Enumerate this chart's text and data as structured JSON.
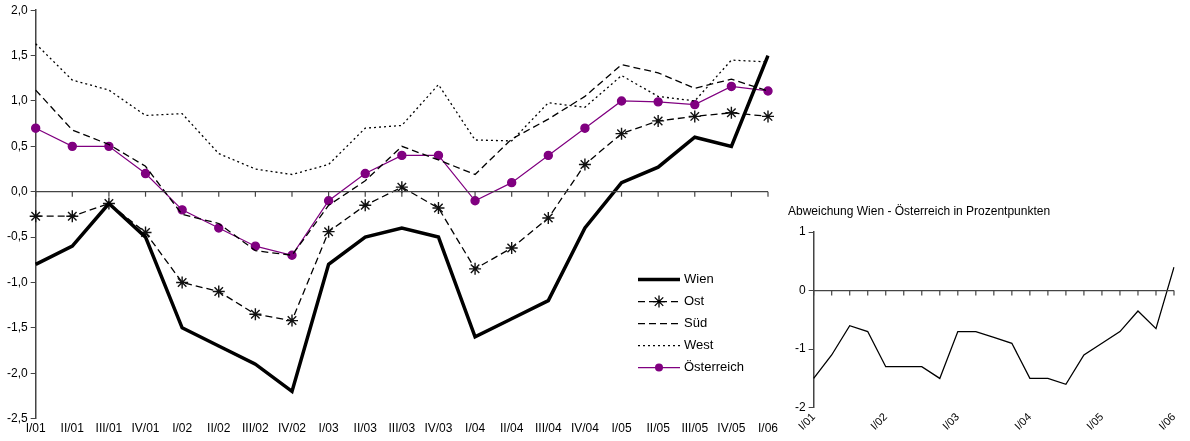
{
  "chart_data": [
    {
      "type": "line",
      "categories": [
        "I/01",
        "II/01",
        "III/01",
        "IV/01",
        "I/02",
        "II/02",
        "III/02",
        "IV/02",
        "I/03",
        "II/03",
        "III/03",
        "IV/03",
        "I/04",
        "II/04",
        "III/04",
        "IV/04",
        "I/05",
        "II/05",
        "III/05",
        "IV/05",
        "I/06"
      ],
      "series": [
        {
          "name": "Wien",
          "color": "#000000",
          "line_style": "solid",
          "marker": "none",
          "values": [
            -0.8,
            -0.6,
            -0.13,
            -0.5,
            -1.5,
            -1.7,
            -1.9,
            -2.2,
            -0.8,
            -0.5,
            -0.4,
            -0.5,
            -1.6,
            -1.4,
            -1.2,
            -0.4,
            0.1,
            0.27,
            0.6,
            0.5,
            1.5
          ]
        },
        {
          "name": "Ost",
          "color": "#000000",
          "line_style": "dashed",
          "marker": "cross",
          "values": [
            -0.27,
            -0.27,
            -0.13,
            -0.45,
            -1.0,
            -1.1,
            -1.35,
            -1.42,
            -0.44,
            -0.15,
            0.05,
            -0.18,
            -0.85,
            -0.62,
            -0.29,
            0.3,
            0.64,
            0.78,
            0.83,
            0.87,
            0.83
          ]
        },
        {
          "name": "Süd",
          "color": "#000000",
          "line_style": "dashed",
          "marker": "none",
          "values": [
            1.12,
            0.68,
            0.52,
            0.28,
            -0.25,
            -0.35,
            -0.65,
            -0.7,
            -0.15,
            0.12,
            0.5,
            0.35,
            0.19,
            0.58,
            0.8,
            1.05,
            1.4,
            1.31,
            1.14,
            1.24,
            1.11
          ]
        },
        {
          "name": "West",
          "color": "#000000",
          "line_style": "dotted",
          "marker": "none",
          "values": [
            1.63,
            1.23,
            1.12,
            0.84,
            0.86,
            0.42,
            0.25,
            0.19,
            0.3,
            0.7,
            0.73,
            1.18,
            0.57,
            0.56,
            0.98,
            0.93,
            1.28,
            1.05,
            1.0,
            1.45,
            1.43
          ]
        },
        {
          "name": "Österreich",
          "color": "#800080",
          "line_style": "solid",
          "marker": "circle",
          "values": [
            0.7,
            0.5,
            0.5,
            0.2,
            -0.2,
            -0.4,
            -0.6,
            -0.7,
            -0.1,
            0.2,
            0.4,
            0.4,
            -0.1,
            0.1,
            0.4,
            0.7,
            1.0,
            0.99,
            0.96,
            1.16,
            1.11
          ]
        }
      ],
      "ylim": [
        -2.5,
        2.0
      ],
      "yticks": [
        {
          "value": -2.5,
          "label": "-2,5"
        },
        {
          "value": -2,
          "label": "-2,0"
        },
        {
          "value": -1.5,
          "label": "-1,5"
        },
        {
          "value": -1,
          "label": "-1,0"
        },
        {
          "value": -0.5,
          "label": "-0,5"
        },
        {
          "value": 0,
          "label": "0,0"
        },
        {
          "value": 0.5,
          "label": "0,5"
        },
        {
          "value": 1,
          "label": "1,0"
        },
        {
          "value": 1.5,
          "label": "1,5"
        },
        {
          "value": 2,
          "label": "2,0"
        }
      ],
      "legend": "bottom right"
    },
    {
      "type": "line",
      "title": "Abweichung Wien - Österreich in Prozentpunkten",
      "categories": [
        "I/01",
        null,
        null,
        null,
        "I/02",
        null,
        null,
        null,
        "I/03",
        null,
        null,
        null,
        "I/04",
        null,
        null,
        null,
        "I/05",
        null,
        null,
        null,
        "I/06"
      ],
      "values": [
        -1.5,
        -1.1,
        -0.6,
        -0.7,
        -1.3,
        -1.3,
        -1.3,
        -1.5,
        -0.7,
        -0.7,
        -0.8,
        -0.9,
        -1.5,
        -1.5,
        -1.6,
        -1.1,
        -0.9,
        -0.7,
        -0.35,
        -0.65,
        0.4
      ],
      "color": "#000000",
      "ylim": [
        -2,
        1
      ],
      "yticks": [
        -2,
        -1,
        0,
        1
      ]
    }
  ]
}
